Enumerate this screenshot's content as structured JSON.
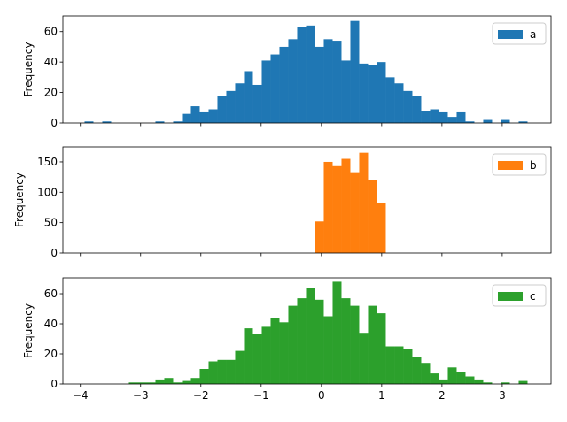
{
  "chart_data": [
    {
      "type": "histogram",
      "ylabel": "Frequency",
      "bins": [
        -3.93,
        -3.783,
        -3.636,
        -3.489,
        -3.342,
        -3.195,
        -3.048,
        -2.901,
        -2.754,
        -2.607,
        -2.46,
        -2.313,
        -2.166,
        -2.019,
        -1.872,
        -1.725,
        -1.578,
        -1.431,
        -1.284,
        -1.137,
        -0.99,
        -0.843,
        -0.696,
        -0.549,
        -0.402,
        -0.255,
        -0.108,
        0.039,
        0.186,
        0.333,
        0.48,
        0.627,
        0.774,
        0.921,
        1.068,
        1.215,
        1.362,
        1.509,
        1.656,
        1.803,
        1.95,
        2.097,
        2.244,
        2.391,
        2.538,
        2.685,
        2.832,
        2.979,
        3.126,
        3.273,
        3.42
      ],
      "series": [
        {
          "name": "a",
          "color": "#1f77b4",
          "values": [
            1,
            0,
            1,
            0,
            0,
            0,
            0,
            0,
            1,
            0,
            1,
            6,
            11,
            7,
            9,
            18,
            21,
            26,
            34,
            25,
            41,
            45,
            50,
            55,
            63,
            64,
            50,
            55,
            54,
            41,
            67,
            39,
            38,
            40,
            30,
            26,
            21,
            18,
            8,
            9,
            7,
            4,
            7,
            1,
            0,
            2,
            0,
            2,
            0,
            1
          ]
        }
      ],
      "xlim": [
        -4.29,
        3.81
      ],
      "xticks": [
        -4,
        -3,
        -2,
        -1,
        0,
        1,
        2,
        3
      ],
      "ylim": [
        0,
        70.3
      ],
      "yticks": [
        0,
        20,
        40,
        60
      ],
      "legend": "upper right"
    },
    {
      "type": "histogram",
      "ylabel": "Frequency",
      "bins": [
        -3.93,
        -3.783,
        -3.636,
        -3.489,
        -3.342,
        -3.195,
        -3.048,
        -2.901,
        -2.754,
        -2.607,
        -2.46,
        -2.313,
        -2.166,
        -2.019,
        -1.872,
        -1.725,
        -1.578,
        -1.431,
        -1.284,
        -1.137,
        -0.99,
        -0.843,
        -0.696,
        -0.549,
        -0.402,
        -0.255,
        -0.108,
        0.039,
        0.186,
        0.333,
        0.48,
        0.627,
        0.774,
        0.921,
        1.068,
        1.215,
        1.362,
        1.509,
        1.656,
        1.803,
        1.95,
        2.097,
        2.244,
        2.391,
        2.538,
        2.685,
        2.832,
        2.979,
        3.126,
        3.273,
        3.42
      ],
      "series": [
        {
          "name": "b",
          "color": "#ff7f0e",
          "values": [
            0,
            0,
            0,
            0,
            0,
            0,
            0,
            0,
            0,
            0,
            0,
            0,
            0,
            0,
            0,
            0,
            0,
            0,
            0,
            0,
            0,
            0,
            0,
            0,
            0,
            0,
            52,
            150,
            143,
            155,
            133,
            165,
            120,
            83,
            0,
            0,
            0,
            0,
            0,
            0,
            0,
            0,
            0,
            0,
            0,
            0,
            0,
            0,
            0,
            0
          ]
        }
      ],
      "xlim": [
        -4.29,
        3.81
      ],
      "xticks": [
        -4,
        -3,
        -2,
        -1,
        0,
        1,
        2,
        3
      ],
      "ylim": [
        0,
        174.7
      ],
      "yticks": [
        0,
        50,
        100,
        150
      ],
      "legend": "upper right"
    },
    {
      "type": "histogram",
      "ylabel": "Frequency",
      "bins": [
        -3.93,
        -3.783,
        -3.636,
        -3.489,
        -3.342,
        -3.195,
        -3.048,
        -2.901,
        -2.754,
        -2.607,
        -2.46,
        -2.313,
        -2.166,
        -2.019,
        -1.872,
        -1.725,
        -1.578,
        -1.431,
        -1.284,
        -1.137,
        -0.99,
        -0.843,
        -0.696,
        -0.549,
        -0.402,
        -0.255,
        -0.108,
        0.039,
        0.186,
        0.333,
        0.48,
        0.627,
        0.774,
        0.921,
        1.068,
        1.215,
        1.362,
        1.509,
        1.656,
        1.803,
        1.95,
        2.097,
        2.244,
        2.391,
        2.538,
        2.685,
        2.832,
        2.979,
        3.126,
        3.273,
        3.42
      ],
      "series": [
        {
          "name": "c",
          "color": "#2ca02c",
          "values": [
            0,
            0,
            0,
            0,
            0,
            1,
            1,
            1,
            3,
            4,
            1,
            2,
            4,
            10,
            15,
            16,
            16,
            22,
            37,
            33,
            38,
            44,
            41,
            52,
            57,
            64,
            56,
            45,
            68,
            57,
            52,
            34,
            52,
            47,
            25,
            25,
            23,
            18,
            14,
            7,
            3,
            11,
            8,
            5,
            3,
            1,
            0,
            1,
            0,
            2
          ]
        }
      ],
      "xlim": [
        -4.29,
        3.81
      ],
      "xticks": [
        {
          "value": -4,
          "label": "−4"
        },
        {
          "value": -3,
          "label": "−3"
        },
        {
          "value": -2,
          "label": "−2"
        },
        {
          "value": -1,
          "label": "−1"
        },
        0,
        1,
        2,
        3
      ],
      "ylim": [
        0,
        70.6
      ],
      "yticks": [
        0,
        20,
        40,
        60
      ],
      "legend": "upper right"
    }
  ]
}
